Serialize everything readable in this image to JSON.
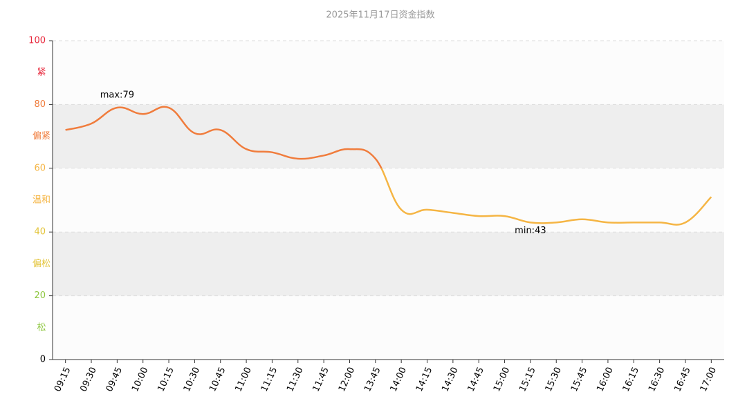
{
  "chart_data": {
    "type": "line",
    "title": "2025年11月17日资金指数",
    "categories": [
      "09:15",
      "09:30",
      "09:45",
      "10:00",
      "10:15",
      "10:30",
      "10:45",
      "11:00",
      "11:15",
      "11:30",
      "11:45",
      "12:00",
      "13:45",
      "14:00",
      "14:15",
      "14:30",
      "14:45",
      "15:00",
      "15:15",
      "15:30",
      "15:45",
      "16:00",
      "16:15",
      "16:30",
      "16:45",
      "17:00"
    ],
    "values": [
      72,
      74,
      79,
      77,
      79,
      71,
      72,
      66,
      65,
      63,
      64,
      66,
      63,
      47,
      47,
      46,
      45,
      45,
      43,
      43,
      44,
      43,
      43,
      43,
      43,
      51
    ],
    "ylim": [
      0,
      100
    ],
    "yticks": [
      0,
      20,
      40,
      60,
      80,
      100
    ],
    "grid": true,
    "bands": [
      {
        "from": 0,
        "to": 20,
        "label": "松",
        "color": "#8dc63f",
        "fill": "#fcfcfc"
      },
      {
        "from": 20,
        "to": 40,
        "label": "偏松",
        "color": "#e3c43a",
        "fill": "#eeeeee"
      },
      {
        "from": 40,
        "to": 60,
        "label": "温和",
        "color": "#f5b544",
        "fill": "#fcfcfc"
      },
      {
        "from": 60,
        "to": 80,
        "label": "偏紧",
        "color": "#f07c3c",
        "fill": "#eeeeee"
      },
      {
        "from": 80,
        "to": 100,
        "label": "紧",
        "color": "#e8283c",
        "fill": "#fcfcfc"
      }
    ],
    "annotations": {
      "max": "max:79",
      "min": "min:43"
    }
  }
}
